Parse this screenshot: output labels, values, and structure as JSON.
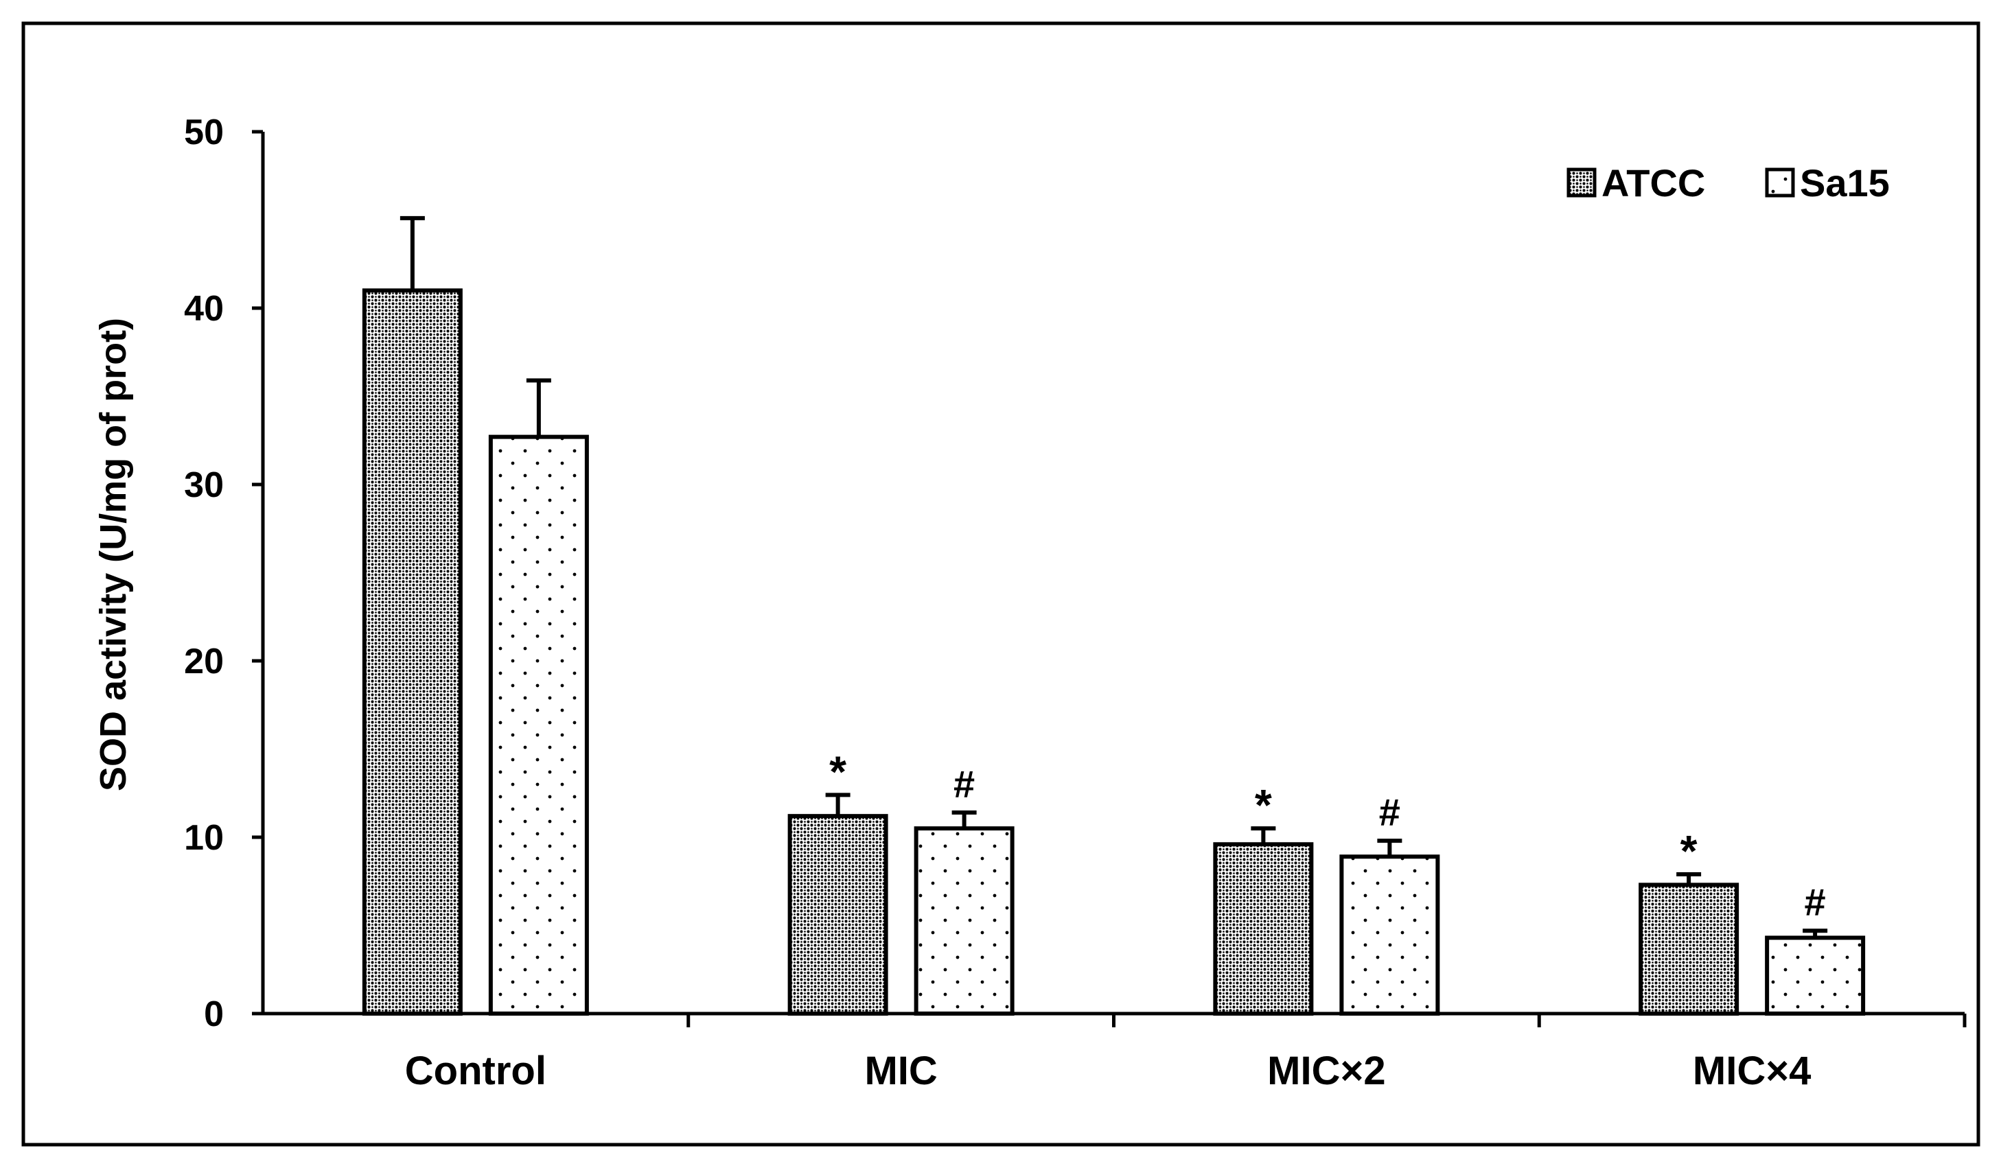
{
  "chart_data": {
    "type": "bar",
    "title": "",
    "xlabel": "",
    "ylabel": "SOD activity  (U/mg of prot)",
    "ylim": [
      0,
      50
    ],
    "yticks": [
      0,
      10,
      20,
      30,
      40,
      50
    ],
    "grid": false,
    "legend_position": "top-right",
    "categories": [
      "Control",
      "MIC",
      "MIC×2",
      "MIC×4"
    ],
    "series": [
      {
        "name": "ATCC",
        "pattern": "dense-dots",
        "values": [
          41.0,
          11.2,
          9.6,
          7.3
        ],
        "errors": [
          4.1,
          1.2,
          0.9,
          0.6
        ],
        "annotations": [
          "",
          "*",
          "*",
          "*"
        ]
      },
      {
        "name": "Sa15",
        "pattern": "sparse-dots",
        "values": [
          32.7,
          10.5,
          8.9,
          4.3
        ],
        "errors": [
          3.2,
          0.9,
          0.9,
          0.4
        ],
        "annotations": [
          "",
          "#",
          "#",
          "#"
        ]
      }
    ],
    "colors": {
      "axis": "#000000",
      "bar_fill": "#ffffff",
      "pattern": "#000000"
    }
  }
}
